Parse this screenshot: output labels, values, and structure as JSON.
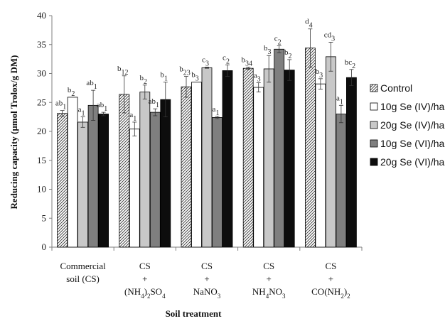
{
  "chart_data": {
    "type": "bar",
    "ylabel": "Reducing capacity (µmol Trolox/g DM)",
    "xlabel": "Soil treatment",
    "ylim": [
      0,
      40
    ],
    "yticks": [
      0,
      5,
      10,
      15,
      20,
      25,
      30,
      35,
      40
    ],
    "grid": false,
    "legend_position": "right",
    "categories": [
      {
        "lines": [
          "Commercial",
          "soil (CS)"
        ]
      },
      {
        "lines": [
          "CS",
          "+",
          "(NH4)2SO4"
        ]
      },
      {
        "lines": [
          "CS",
          "+",
          "NaNO3"
        ]
      },
      {
        "lines": [
          "CS",
          "+",
          "NH4NO3"
        ]
      },
      {
        "lines": [
          "CS",
          "+",
          "CO(NH2)2"
        ]
      }
    ],
    "series": [
      {
        "name": "Control",
        "fill": "hatch",
        "values": [
          23.1,
          26.4,
          27.7,
          30.9,
          34.4
        ],
        "errors": [
          0.5,
          3.2,
          1.8,
          0.2,
          3.3
        ],
        "labels": [
          [
            "ab",
            "1"
          ],
          [
            "b",
            "12"
          ],
          [
            "b",
            "23"
          ],
          [
            "b",
            "34"
          ],
          [
            "d",
            "4"
          ]
        ]
      },
      {
        "name": "10g Se (IV)/ha",
        "fill": "#ffffff",
        "values": [
          25.9,
          20.4,
          28.5,
          27.6,
          28.2
        ],
        "errors": [
          0.0,
          1.2,
          0.0,
          0.8,
          0.9
        ],
        "labels": [
          [
            "b",
            "2"
          ],
          [
            "a",
            "1"
          ],
          [
            "b",
            "3"
          ],
          [
            "a",
            "3"
          ],
          [
            "b",
            "3"
          ]
        ]
      },
      {
        "name": "20g Se (IV)/ha",
        "fill": "#c8c8c8",
        "values": [
          21.6,
          26.8,
          31.0,
          30.8,
          32.9
        ],
        "errors": [
          0.9,
          1.2,
          0.1,
          2.3,
          2.5
        ],
        "labels": [
          [
            "a",
            "1"
          ],
          [
            "b",
            "2"
          ],
          [
            "c",
            "3"
          ],
          [
            "b",
            "3"
          ],
          [
            "cd",
            "3"
          ]
        ]
      },
      {
        "name": "10g Se (VI)/ha",
        "fill": "#7f7f7f",
        "values": [
          24.5,
          23.3,
          22.4,
          34.2,
          23.0
        ],
        "errors": [
          2.6,
          0.6,
          0.2,
          0.6,
          1.5
        ],
        "labels": [
          [
            "ab",
            "1"
          ],
          [
            "ab",
            "1"
          ],
          [
            "a",
            "1"
          ],
          [
            "c",
            "2"
          ],
          [
            "a",
            "1"
          ]
        ]
      },
      {
        "name": "20g Se (VI)/ha",
        "fill": "#0d0d0d",
        "values": [
          23.0,
          25.5,
          30.5,
          30.6,
          29.3
        ],
        "errors": [
          0.3,
          3.0,
          1.0,
          1.8,
          1.4
        ],
        "labels": [
          [
            "ab",
            "1"
          ],
          [
            "b",
            "1"
          ],
          [
            "c",
            "2"
          ],
          [
            "b",
            "2"
          ],
          [
            "bc",
            "2"
          ]
        ]
      }
    ]
  }
}
